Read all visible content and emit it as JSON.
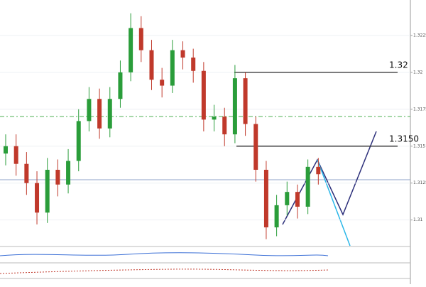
{
  "chart_data": {
    "type": "candlestick",
    "open": [
      1.3145,
      1.315,
      1.3138,
      1.3125,
      1.3105,
      1.3134,
      1.3124,
      1.314,
      1.3167,
      1.3182,
      1.3162,
      1.3182,
      1.32,
      1.323,
      1.3215,
      1.3195,
      1.3191,
      1.3215,
      1.321,
      1.3201,
      1.3168,
      1.317,
      1.3158,
      1.3196,
      1.3165,
      1.3134,
      1.3095,
      1.311,
      1.3119,
      1.3109,
      1.3136
    ],
    "high": [
      1.3158,
      1.3158,
      1.3146,
      1.3133,
      1.3142,
      1.3141,
      1.3148,
      1.3175,
      1.319,
      1.3189,
      1.319,
      1.3208,
      1.324,
      1.3238,
      1.3222,
      1.3203,
      1.3222,
      1.3221,
      1.3216,
      1.3207,
      1.3178,
      1.3176,
      1.3205,
      1.32,
      1.317,
      1.314,
      1.3117,
      1.3126,
      1.3124,
      1.3141,
      1.3142
    ],
    "low": [
      1.3137,
      1.313,
      1.3117,
      1.3097,
      1.3098,
      1.3116,
      1.3118,
      1.3133,
      1.316,
      1.3155,
      1.3156,
      1.3176,
      1.3194,
      1.3207,
      1.3188,
      1.3183,
      1.3186,
      1.3202,
      1.3193,
      1.316,
      1.316,
      1.315,
      1.3152,
      1.3157,
      1.3126,
      1.3087,
      1.3089,
      1.3103,
      1.3101,
      1.3104,
      1.3124
    ],
    "close": [
      1.315,
      1.3138,
      1.3125,
      1.3105,
      1.3134,
      1.3124,
      1.314,
      1.3167,
      1.3182,
      1.3162,
      1.3182,
      1.32,
      1.323,
      1.3215,
      1.3195,
      1.3191,
      1.3215,
      1.321,
      1.3201,
      1.3168,
      1.317,
      1.3158,
      1.3196,
      1.3165,
      1.3134,
      1.3095,
      1.311,
      1.3119,
      1.3109,
      1.3136,
      1.3131
    ],
    "up_color": "#2a9d3a",
    "down_color": "#c0392b",
    "ylim": [
      1.3083,
      1.3249
    ],
    "yticks": [
      1.31,
      1.3125,
      1.315,
      1.3175,
      1.32,
      1.3225
    ],
    "grid": true,
    "levels": [
      {
        "value": 1.32,
        "label": "1.32"
      },
      {
        "value": 1.315,
        "label": "1.3150"
      }
    ]
  }
}
